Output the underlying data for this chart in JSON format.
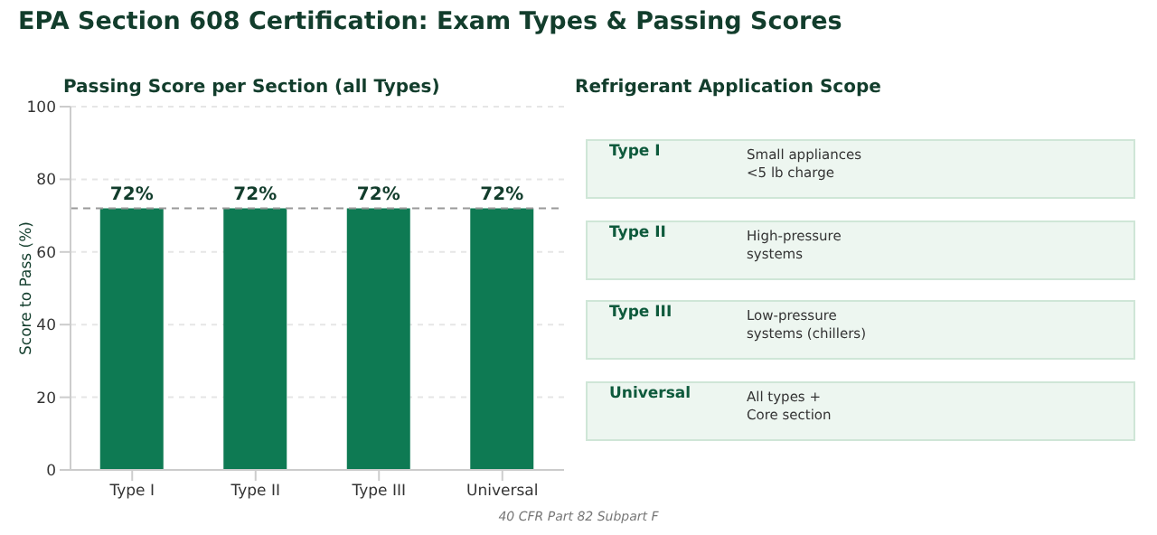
{
  "chart_data": [
    {
      "type": "bar",
      "title": "EPA Section 608 Certification: Exam Types & Passing Scores",
      "subtitle": "Passing Score per Section (all Types)",
      "ylabel": "Score to Pass (%)",
      "categories": [
        "Type I",
        "Type II",
        "Type III",
        "Universal"
      ],
      "values": [
        72,
        72,
        72,
        72
      ],
      "value_labels": [
        "72%",
        "72%",
        "72%",
        "72%"
      ],
      "color": "#0e7a53",
      "ylim": [
        0,
        100
      ],
      "yticks": [
        0,
        20,
        40,
        60,
        80,
        100
      ],
      "grid": "y",
      "ref_lines": [
        {
          "axis": "y",
          "value": 72,
          "color": "#999999",
          "line_style": "dashed"
        }
      ],
      "annotations": [
        "40 CFR Part 82 Subpart F"
      ]
    },
    {
      "type": "other",
      "title": "Refrigerant Application Scope",
      "categories": [
        "Type I",
        "Type II",
        "Type III",
        "Universal"
      ],
      "annotations": [
        "Small appliances\n<5 lb charge",
        "High-pressure\nsystems",
        "Low-pressure\nsystems (chillers)",
        "All types +\nCore section"
      ]
    }
  ]
}
